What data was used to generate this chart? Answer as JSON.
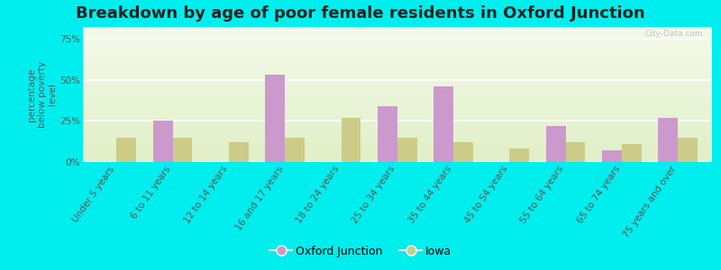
{
  "title": "Breakdown by age of poor female residents in Oxford Junction",
  "categories": [
    "Under 5 years",
    "6 to 11 years",
    "12 to 14 years",
    "16 and 17 years",
    "18 to 24 years",
    "25 to 34 years",
    "35 to 44 years",
    "45 to 54 years",
    "55 to 64 years",
    "65 to 74 years",
    "75 years and over"
  ],
  "oxford_junction": [
    0,
    25,
    0,
    53,
    0,
    34,
    46,
    0,
    22,
    7,
    27
  ],
  "iowa": [
    15,
    15,
    12,
    15,
    27,
    15,
    12,
    8,
    12,
    11,
    15
  ],
  "oxford_color": "#cc99cc",
  "iowa_color": "#cccc88",
  "outer_bg_color": "#00eeee",
  "ylabel": "percentage\nbelow poverty\nlevel",
  "ylim": [
    0,
    82
  ],
  "yticks": [
    0,
    25,
    50,
    75
  ],
  "ytick_labels": [
    "0%",
    "25%",
    "50%",
    "75%"
  ],
  "title_fontsize": 13,
  "axis_label_fontsize": 7.5,
  "tick_fontsize": 7.5,
  "bar_width": 0.35,
  "legend_oxford": "Oxford Junction",
  "legend_iowa": "Iowa"
}
